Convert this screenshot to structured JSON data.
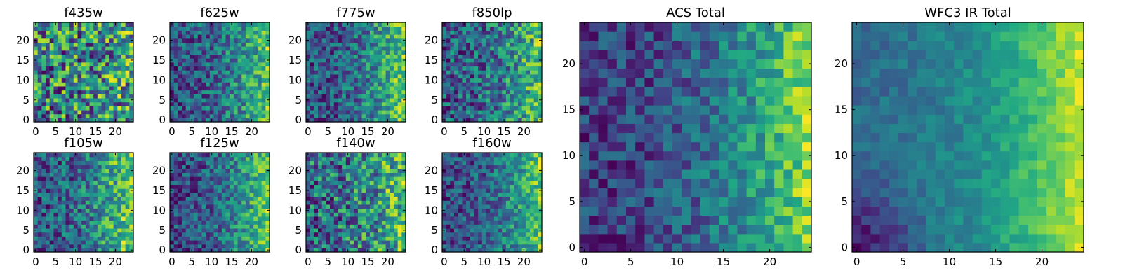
{
  "chart_data": [
    {
      "type": "heatmap",
      "title": "f435w",
      "seed": 11,
      "trend": 0.12,
      "noise": 1.0,
      "corner": 0.0,
      "xticks": [
        0,
        5,
        10,
        15,
        20
      ],
      "yticks": [
        0,
        5,
        10,
        15,
        20
      ],
      "xlim": [
        -0.5,
        24.5
      ],
      "ylim": [
        -0.5,
        24.5
      ],
      "grid_size": 25,
      "colormap": "viridis"
    },
    {
      "type": "heatmap",
      "title": "f625w",
      "seed": 23,
      "trend": 0.55,
      "noise": 0.7,
      "corner": 0.0,
      "xticks": [
        0,
        5,
        10,
        15,
        20
      ],
      "yticks": [
        0,
        5,
        10,
        15,
        20
      ],
      "xlim": [
        -0.5,
        24.5
      ],
      "ylim": [
        -0.5,
        24.5
      ],
      "grid_size": 25,
      "colormap": "viridis"
    },
    {
      "type": "heatmap",
      "title": "f775w",
      "seed": 37,
      "trend": 0.6,
      "noise": 0.7,
      "corner": 0.0,
      "xticks": [
        0,
        5,
        10,
        15,
        20
      ],
      "yticks": [
        0,
        5,
        10,
        15,
        20
      ],
      "xlim": [
        -0.5,
        24.5
      ],
      "ylim": [
        -0.5,
        24.5
      ],
      "grid_size": 25,
      "colormap": "viridis"
    },
    {
      "type": "heatmap",
      "title": "f850lp",
      "seed": 41,
      "trend": 0.45,
      "noise": 0.75,
      "corner": 0.0,
      "xticks": [
        0,
        5,
        10,
        15,
        20
      ],
      "yticks": [
        0,
        5,
        10,
        15,
        20
      ],
      "xlim": [
        -0.5,
        24.5
      ],
      "ylim": [
        -0.5,
        24.5
      ],
      "grid_size": 25,
      "colormap": "viridis"
    },
    {
      "type": "heatmap",
      "title": "f105w",
      "seed": 53,
      "trend": 0.5,
      "noise": 0.6,
      "corner": 0.0,
      "xticks": [
        0,
        5,
        10,
        15,
        20
      ],
      "yticks": [
        0,
        5,
        10,
        15,
        20
      ],
      "xlim": [
        -0.5,
        24.5
      ],
      "ylim": [
        -0.5,
        24.5
      ],
      "grid_size": 25,
      "colormap": "viridis"
    },
    {
      "type": "heatmap",
      "title": "f125w",
      "seed": 67,
      "trend": 0.55,
      "noise": 0.55,
      "corner": 0.0,
      "xticks": [
        0,
        5,
        10,
        15,
        20
      ],
      "yticks": [
        0,
        5,
        10,
        15,
        20
      ],
      "xlim": [
        -0.5,
        24.5
      ],
      "ylim": [
        -0.5,
        24.5
      ],
      "grid_size": 25,
      "colormap": "viridis"
    },
    {
      "type": "heatmap",
      "title": "f140w",
      "seed": 79,
      "trend": 0.35,
      "noise": 0.85,
      "corner": 0.0,
      "xticks": [
        0,
        5,
        10,
        15,
        20
      ],
      "yticks": [
        0,
        5,
        10,
        15,
        20
      ],
      "xlim": [
        -0.5,
        24.5
      ],
      "ylim": [
        -0.5,
        24.5
      ],
      "grid_size": 25,
      "colormap": "viridis"
    },
    {
      "type": "heatmap",
      "title": "f160w",
      "seed": 83,
      "trend": 0.6,
      "noise": 0.6,
      "corner": 0.0,
      "xticks": [
        0,
        5,
        10,
        15,
        20
      ],
      "yticks": [
        0,
        5,
        10,
        15,
        20
      ],
      "xlim": [
        -0.5,
        24.5
      ],
      "ylim": [
        -0.5,
        24.5
      ],
      "grid_size": 25,
      "colormap": "viridis"
    },
    {
      "type": "heatmap",
      "title": "ACS Total",
      "seed": 97,
      "trend": 0.65,
      "noise": 0.45,
      "corner": 0.0,
      "xticks": [
        0,
        5,
        10,
        15,
        20
      ],
      "yticks": [
        0,
        5,
        10,
        15,
        20
      ],
      "xlim": [
        -0.5,
        24.5
      ],
      "ylim": [
        -0.5,
        24.5
      ],
      "grid_size": 25,
      "colormap": "viridis"
    },
    {
      "type": "heatmap",
      "title": "WFC3 IR Total",
      "seed": 101,
      "trend": 0.8,
      "noise": 0.3,
      "corner": 0.45,
      "xticks": [
        0,
        5,
        10,
        15,
        20
      ],
      "yticks": [
        0,
        5,
        10,
        15,
        20
      ],
      "xlim": [
        -0.5,
        24.5
      ],
      "ylim": [
        -0.5,
        24.5
      ],
      "grid_size": 25,
      "colormap": "viridis"
    }
  ]
}
